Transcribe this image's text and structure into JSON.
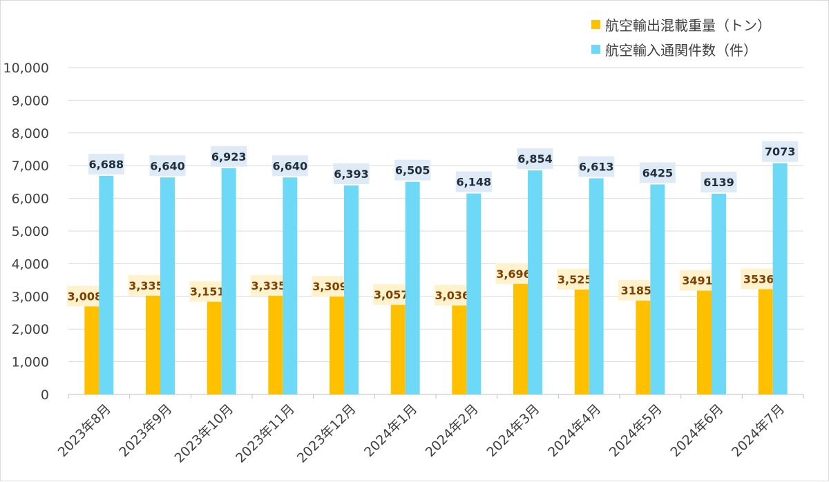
{
  "chart_data": {
    "type": "bar",
    "categories": [
      "2023年8月",
      "2023年9月",
      "2023年10月",
      "2023年11月",
      "2023年12月",
      "2024年1月",
      "2024年2月",
      "2024年3月",
      "2024年4月",
      "2024年5月",
      "2024年6月",
      "2024年7月"
    ],
    "series": [
      {
        "name": "航空輸出混載重量（トン）",
        "color": "#FFC000",
        "label_bg": "#FFF2CC",
        "label_color": "#7F3F00",
        "values": [
          3008,
          3335,
          3151,
          3335,
          3309,
          3057,
          3036,
          3696,
          3525,
          3185,
          3491,
          3536
        ],
        "labels": [
          "3,008",
          "3,335",
          "3,151",
          "3,335",
          "3,309",
          "3,057",
          "3,036",
          "3,696",
          "3,525",
          "3185",
          "3491",
          "3536"
        ]
      },
      {
        "name": "航空輸入通関件数（件）",
        "color": "#6DD9F7",
        "label_bg": "#DEEBF7",
        "label_color": "#1F2D3D",
        "values": [
          6688,
          6640,
          6923,
          6640,
          6393,
          6505,
          6148,
          6854,
          6613,
          6425,
          6139,
          7073
        ],
        "labels": [
          "6,688",
          "6,640",
          "6,923",
          "6,640",
          "6,393",
          "6,505",
          "6,148",
          "6,854",
          "6,613",
          "6425",
          "6139",
          "7073"
        ]
      }
    ],
    "ylim": [
      0,
      10000
    ],
    "y_ticks": [
      0,
      1000,
      2000,
      3000,
      4000,
      5000,
      6000,
      7000,
      8000,
      9000,
      10000
    ],
    "y_tick_labels": [
      "0",
      "1,000",
      "2,000",
      "3,000",
      "4,000",
      "5,000",
      "6,000",
      "7,000",
      "8,000",
      "9,000",
      "10,000"
    ],
    "grid": true,
    "legend_position": "top-right",
    "xlabel": "",
    "ylabel": "",
    "title": ""
  }
}
